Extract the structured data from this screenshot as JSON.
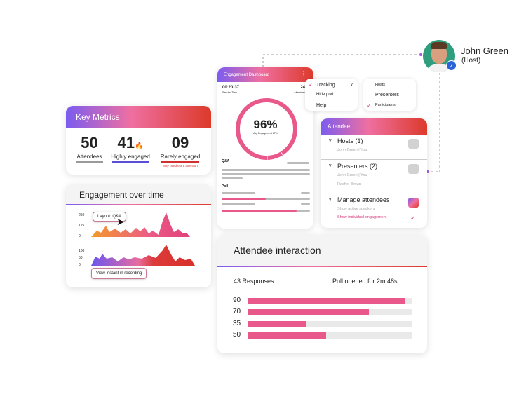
{
  "key_metrics": {
    "title": "Key Metrics",
    "items": [
      {
        "value": "50",
        "label": "Attendees",
        "color": "#9a9a9a"
      },
      {
        "value": "41",
        "label": "Highly engaged",
        "color": "#5b4fd6",
        "icon": "fire-icon"
      },
      {
        "value": "09",
        "label": "Rarely engaged",
        "color": "#d42f2f",
        "note": "May need extra attention"
      }
    ]
  },
  "engagement_time": {
    "title": "Engagement over time",
    "top_ticks": [
      "250",
      "125",
      "0"
    ],
    "bottom_ticks": [
      "100",
      "50",
      "0"
    ],
    "tooltip_top": "Layout: Q&A",
    "tooltip_bottom": "View instant in recording"
  },
  "dashboard": {
    "title": "Engagement Dashboard",
    "session_time": "00:20:37",
    "session_label": "Session Time",
    "attendees": "24",
    "attendees_label": "Attendees",
    "percent": "96%",
    "percent_label": "Avg Engagement 87%",
    "qa_label": "Q&A",
    "poll_label": "Poll",
    "poll_fills": [
      0.5,
      0.85
    ]
  },
  "tracking_menu": {
    "items": [
      "Tracking",
      "Hide pod",
      "Help"
    ],
    "checked": "Tracking"
  },
  "role_menu": {
    "items": [
      "Hosts",
      "Presenters",
      "Participants"
    ],
    "checked": "Participants"
  },
  "attendee": {
    "title": "Attendee",
    "sections": [
      {
        "title": "Hosts (1)",
        "subs": [
          "John Green | You"
        ]
      },
      {
        "title": "Presenters (2)",
        "subs": [
          "John Green | You",
          "Rachel Brown"
        ]
      },
      {
        "title": "Manage attendees",
        "subs": [
          "Show active speakers",
          "Show individual engagement"
        ]
      }
    ]
  },
  "interaction": {
    "title": "Attendee interaction",
    "responses": "43 Responses",
    "poll_time": "Poll opened for 2m 48s",
    "bars": [
      {
        "label": "90",
        "fill": 0.96
      },
      {
        "label": "70",
        "fill": 0.74
      },
      {
        "label": "35",
        "fill": 0.36
      },
      {
        "label": "50",
        "fill": 0.48
      }
    ],
    "bar_color": "#e9588a"
  },
  "host": {
    "name": "John Green",
    "role": "(Host)"
  }
}
